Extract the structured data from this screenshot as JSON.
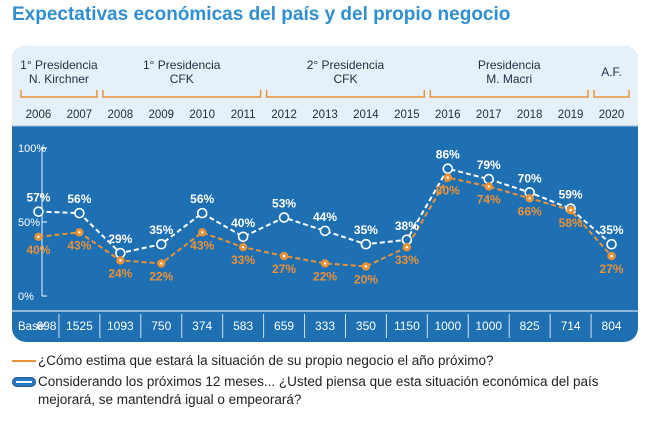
{
  "title": "Expectativas económicas del país y del propio negocio",
  "colors": {
    "panel": "#1f6fb3",
    "header_bg": "#e6f0f8",
    "orange": "#e8923a",
    "white": "#ffffff",
    "title": "#2f8fd0"
  },
  "chart_data": {
    "type": "line",
    "periods": [
      {
        "label": [
          "1° Presidencia",
          "N. Kirchner"
        ],
        "years": [
          "2006",
          "2007"
        ]
      },
      {
        "label": [
          "1° Presidencia",
          "CFK"
        ],
        "years": [
          "2008",
          "2009",
          "2010",
          "2011"
        ]
      },
      {
        "label": [
          "2° Presidencia",
          "CFK"
        ],
        "years": [
          "2012",
          "2013",
          "2014",
          "2015"
        ]
      },
      {
        "label": [
          "Presidencia",
          "M. Macri"
        ],
        "years": [
          "2016",
          "2017",
          "2018",
          "2019"
        ]
      },
      {
        "label": [
          "A.F."
        ],
        "years": [
          "2020"
        ]
      }
    ],
    "x": [
      "2006",
      "2007",
      "2008",
      "2009",
      "2010",
      "2011",
      "2012",
      "2013",
      "2014",
      "2015",
      "2016",
      "2017",
      "2018",
      "2019",
      "2020"
    ],
    "y_ticks": [
      "100%",
      "50%",
      "0%"
    ],
    "ylim": [
      0,
      100
    ],
    "series": [
      {
        "values": [
          57,
          56,
          29,
          35,
          56,
          40,
          53,
          44,
          35,
          38,
          86,
          79,
          70,
          59,
          35
        ],
        "labels": [
          "57%",
          "56%",
          "29%",
          "35%",
          "56%",
          "40%",
          "53%",
          "44%",
          "35%",
          "38%",
          "86%",
          "79%",
          "70%",
          "59%",
          "35%"
        ],
        "color": "#ffffff",
        "style": "dashed"
      },
      {
        "values": [
          40,
          43,
          24,
          22,
          43,
          33,
          27,
          22,
          20,
          33,
          80,
          74,
          66,
          58,
          27
        ],
        "labels": [
          "40%",
          "43%",
          "24%",
          "22%",
          "43%",
          "33%",
          "27%",
          "22%",
          "20%",
          "33%",
          "80%",
          "74%",
          "66%",
          "58%",
          "27%"
        ],
        "color": "#e8923a",
        "style": "dashed"
      }
    ],
    "base_label": "Base:",
    "base": [
      "698",
      "1525",
      "1093",
      "750",
      "374",
      "583",
      "659",
      "333",
      "350",
      "1150",
      "1000",
      "1000",
      "825",
      "714",
      "804"
    ]
  },
  "legend": {
    "business": "¿Cómo estima que estará la situación de su propio negocio el año próximo?",
    "country": "Considerando los próximos 12 meses... ¿Usted piensa que esta situación económica del país mejorará, se mantendrá igual o empeorará?"
  }
}
